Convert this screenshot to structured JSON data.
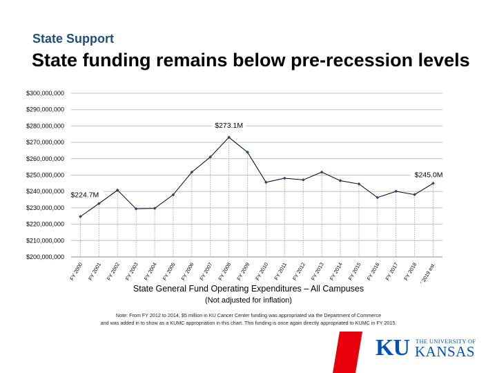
{
  "header": {
    "section": "State Support",
    "title": "State funding remains below pre-recession levels"
  },
  "chart_data": {
    "type": "line",
    "categories": [
      "FY 2000",
      "FY 2001",
      "FY 2002",
      "FY 2003",
      "FY 2004",
      "FY 2005",
      "FY 2006",
      "FY 2007",
      "FY 2008",
      "FY 2009",
      "FY 2010",
      "FY 2011",
      "FY 2012",
      "FY 2013",
      "FY 2014",
      "FY 2015",
      "FY 2016",
      "FY 2017",
      "FY 2018",
      "FY 2019 est."
    ],
    "values": [
      224.7,
      232.6,
      240.8,
      229.4,
      229.7,
      238.0,
      251.8,
      261.1,
      273.1,
      264.0,
      245.6,
      248.1,
      247.1,
      251.8,
      246.6,
      244.6,
      236.3,
      240.1,
      238.1,
      245.0
    ],
    "ylim": [
      200000000,
      300000000
    ],
    "y_ticks": [
      "$200,000,000",
      "$210,000,000",
      "$220,000,000",
      "$230,000,000",
      "$240,000,000",
      "$250,000,000",
      "$260,000,000",
      "$270,000,000",
      "$280,000,000",
      "$290,000,000",
      "$300,000,000"
    ],
    "data_labels": [
      {
        "index": 0,
        "text": "$224.7M"
      },
      {
        "index": 8,
        "text": "$273.1M"
      },
      {
        "index": 19,
        "text": "$245.0M"
      }
    ],
    "line_color": "#000000",
    "marker_color": "#1f4e79",
    "grid": true
  },
  "caption": {
    "title": "State General Fund Operating Expenditures – All Campuses",
    "subtitle": "(Not adjusted for inflation)"
  },
  "note": {
    "line1": "Note: From FY 2012 to 2014, $5 million in KU Cancer Center funding was appropriated via the Department of Commerce",
    "line2": "and was added in to show as a KUMC appropriation in this chart. This funding is once again directly appropriated to KUMC in FY 2015."
  },
  "logo": {
    "mark": "KU",
    "line1": "THE UNIVERSITY OF",
    "line2": "KANSAS",
    "color": "#0051ba"
  },
  "accent_color": "#e8000d"
}
